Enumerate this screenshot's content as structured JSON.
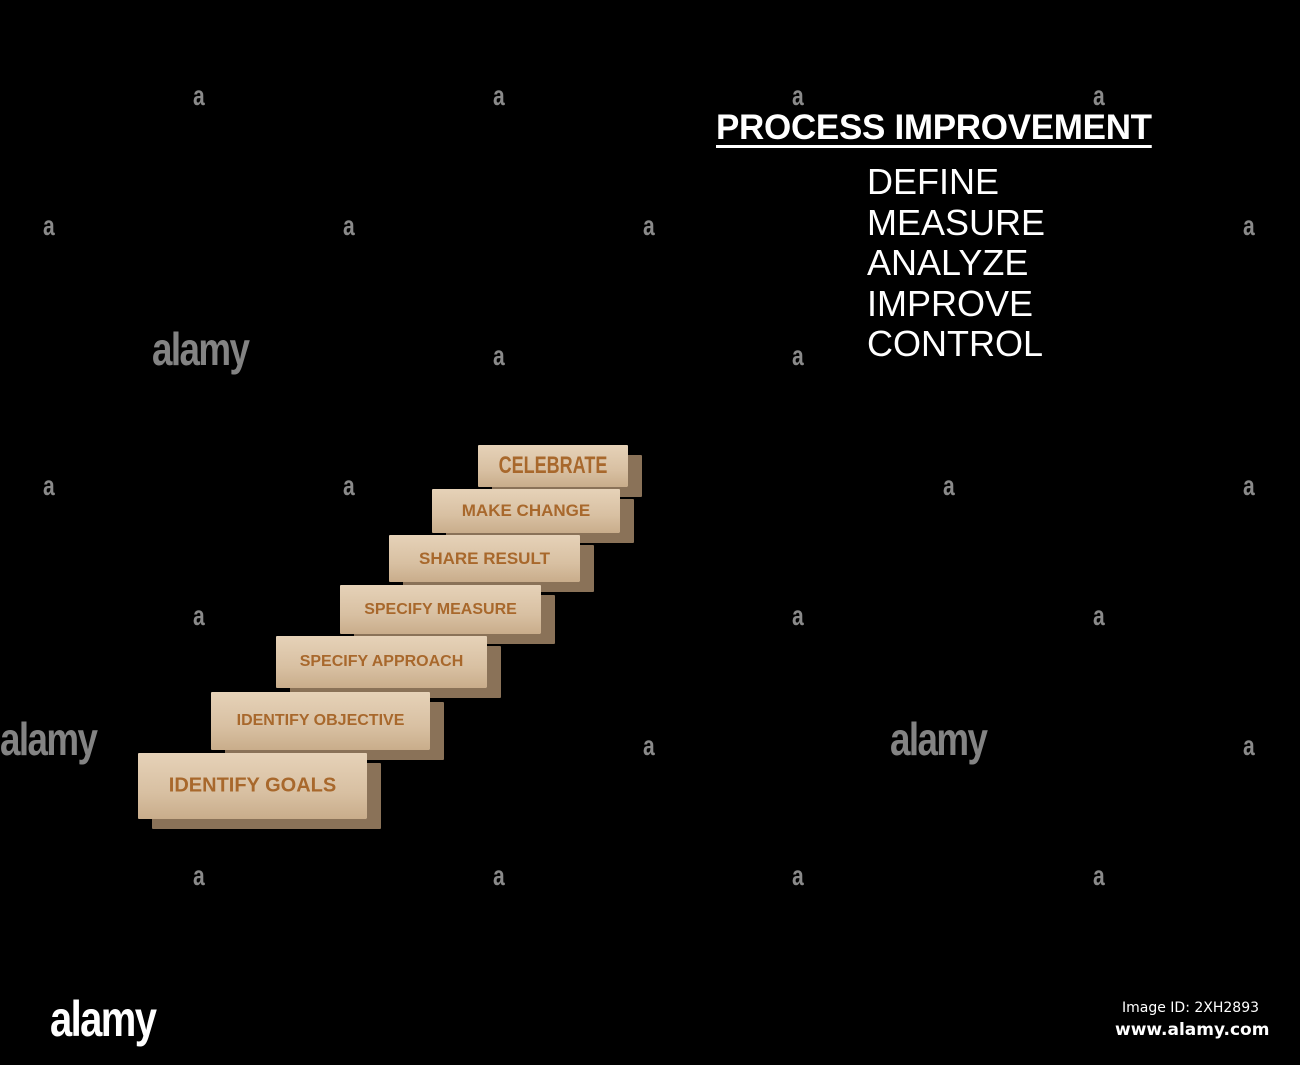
{
  "heading": "PROCESS IMPROVEMENT",
  "dmaic": [
    "DEFINE",
    "MEASURE",
    "ANALYZE",
    "IMPROVE",
    "CONTROL"
  ],
  "blocks": [
    "IDENTIFY GOALS",
    "IDENTIFY OBJECTIVE",
    "SPECIFY APPROACH",
    "SPECIFY MEASURE",
    "SHARE RESULT",
    "MAKE CHANGE",
    "CELEBRATE"
  ],
  "watermark": {
    "letter": "a",
    "logo": "alamy"
  },
  "footer": {
    "logo": "alamy",
    "image_id": "Image ID: 2XH2893",
    "site": "www.alamy.com"
  },
  "colors": {
    "background": "#000000",
    "wood": "#e0cbb0",
    "engraving": "#a8682c",
    "text": "#ffffff"
  }
}
